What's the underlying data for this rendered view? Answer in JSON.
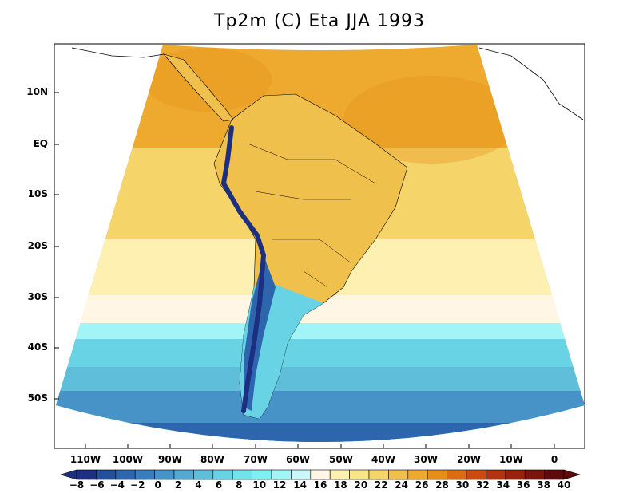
{
  "title": "Tp2m (C) Eta JJA 1993",
  "y_ticks": [
    "10N",
    "EQ",
    "10S",
    "20S",
    "30S",
    "40S",
    "50S"
  ],
  "x_ticks": [
    "110W",
    "100W",
    "90W",
    "80W",
    "70W",
    "60W",
    "50W",
    "40W",
    "30W",
    "20W",
    "10W",
    "0"
  ],
  "colorbar": {
    "labels": [
      "-8",
      "-6",
      "-4",
      "-2",
      "0",
      "2",
      "4",
      "6",
      "8",
      "10",
      "12",
      "14",
      "16",
      "18",
      "20",
      "22",
      "24",
      "26",
      "28",
      "30",
      "32",
      "34",
      "36",
      "38",
      "40"
    ],
    "colors": [
      "#1c2f80",
      "#24509a",
      "#2e66ad",
      "#3a7dbd",
      "#4793c8",
      "#54a8d1",
      "#5fbfdb",
      "#67d3e4",
      "#70e3ec",
      "#7eeff2",
      "#a3f4f6",
      "#cbf6fb",
      "#fff6e6",
      "#fdf0b0",
      "#f9e48a",
      "#f5d46a",
      "#f0c04c",
      "#eeaa2e",
      "#e68e18",
      "#db6c12",
      "#cc4a10",
      "#b2330f",
      "#98220e",
      "#7a140d",
      "#5e0a0a"
    ]
  },
  "map_colors": {
    "ocean_cold": "#2e66ad",
    "ocean_cool": "#5fbfdb",
    "ocean_mild": "#a3f4f6",
    "warm_low": "#fdf0b0",
    "warm_mid": "#f5d46a",
    "warm_high": "#eeaa2e",
    "land_andes": "#1c2f80"
  }
}
